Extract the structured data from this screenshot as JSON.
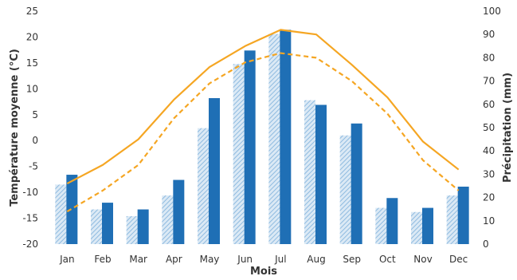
{
  "chart_data": {
    "type": "bar",
    "title": "",
    "xlabel": "Mois",
    "ylabel_left": "Température moyenne (°C)",
    "ylabel_right": "Précipitation (mm)",
    "categories": [
      "Jan",
      "Feb",
      "Mar",
      "Apr",
      "May",
      "Jun",
      "Jul",
      "Aug",
      "Sep",
      "Oct",
      "Nov",
      "Dec"
    ],
    "ylim_left": [
      -20,
      25
    ],
    "ylim_right": [
      0,
      100
    ],
    "yticks_left": [
      -20,
      -15,
      -10,
      -5,
      0,
      5,
      10,
      15,
      20,
      25
    ],
    "yticks_right": [
      0,
      10,
      20,
      30,
      40,
      50,
      60,
      70,
      80,
      90,
      100
    ],
    "bar_series": [
      {
        "axis": "left",
        "style": "hatched",
        "color": "#a9cbe6",
        "values": [
          -8.5,
          -13.3,
          -14.6,
          -10.6,
          2.4,
          14.8,
          20.6,
          7.8,
          1.0,
          -13.0,
          -13.8,
          -10.6
        ]
      },
      {
        "axis": "left",
        "style": "solid",
        "color": "#1f6fb5",
        "values": [
          -6.6,
          -12.0,
          -13.3,
          -7.6,
          8.2,
          17.4,
          21.4,
          6.9,
          3.3,
          -11.1,
          -13.0,
          -8.9
        ]
      }
    ],
    "line_series": [
      {
        "axis": "right",
        "style": "solid",
        "color": "#f5a623",
        "values": [
          26,
          34,
          45,
          62,
          76,
          85,
          92,
          90,
          77,
          63,
          44,
          32
        ]
      },
      {
        "axis": "right",
        "style": "dashed",
        "color": "#f5a623",
        "values": [
          14,
          23,
          34,
          54,
          69,
          78,
          82,
          80,
          70,
          56,
          36,
          23
        ]
      }
    ]
  }
}
